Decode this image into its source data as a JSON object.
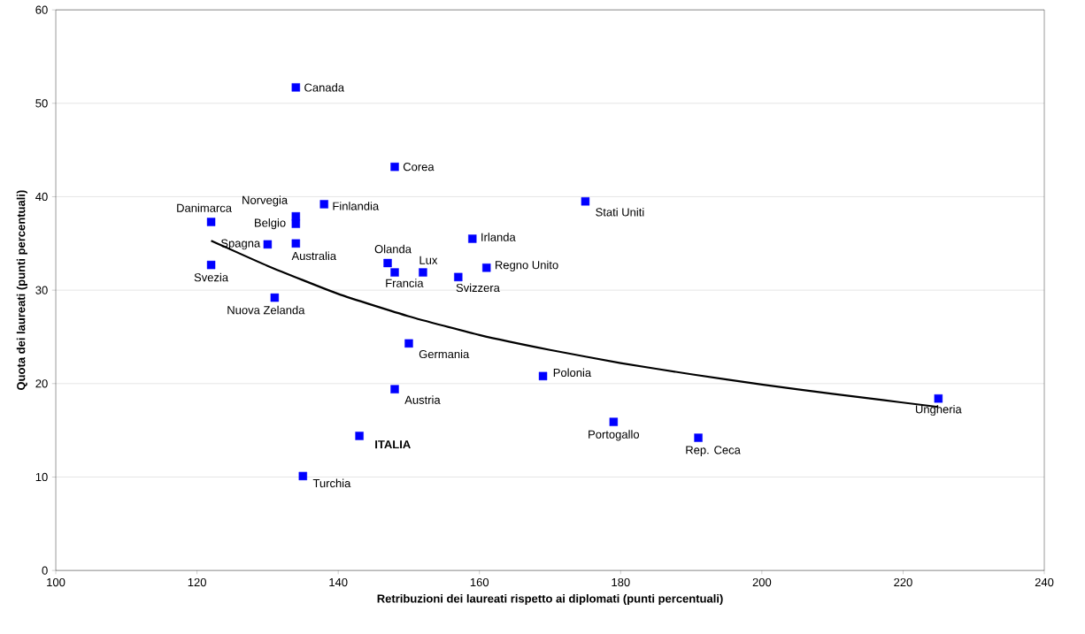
{
  "chart_data": {
    "type": "scatter",
    "xlabel": "Retribuzioni  dei laureati rispetto ai diplomati (punti percentuali)",
    "ylabel": "Quota dei laureati (punti percentuali)",
    "xlim": [
      100,
      240
    ],
    "xticks": [
      100,
      120,
      140,
      160,
      180,
      200,
      220,
      240
    ],
    "ylim": [
      0,
      60
    ],
    "yticks": [
      0,
      10,
      20,
      30,
      40,
      50,
      60
    ],
    "grid": "y",
    "marker": "square",
    "series": [
      {
        "color": "#0000ff",
        "x": [
          134,
          148,
          134,
          134,
          138,
          122,
          130,
          122,
          134,
          131,
          147,
          148,
          152,
          157,
          161,
          159,
          175,
          150,
          148,
          169,
          179,
          191,
          225,
          143,
          135
        ],
        "values": [
          51.7,
          43.2,
          37.9,
          37.1,
          39.2,
          37.3,
          34.9,
          32.7,
          35.0,
          29.2,
          32.9,
          31.9,
          31.9,
          31.4,
          32.4,
          35.5,
          39.5,
          24.3,
          19.4,
          20.8,
          15.9,
          14.2,
          18.4,
          14.4,
          10.1
        ]
      },
      {
        "type": "line",
        "color": "#000000",
        "marker": "none",
        "x": [
          122,
          130,
          140,
          150,
          160,
          170,
          180,
          190,
          200,
          210,
          225
        ],
        "values": [
          35.3,
          32.6,
          29.6,
          27.2,
          25.2,
          23.6,
          22.2,
          21.0,
          19.9,
          18.9,
          17.5
        ]
      }
    ],
    "annotations": [
      {
        "text": "Canada",
        "x": 134,
        "y": 51.7
      },
      {
        "text": "Corea",
        "x": 148,
        "y": 43.2
      },
      {
        "text": "Norvegia",
        "x": 134,
        "y": 37.9
      },
      {
        "text": "Belgio",
        "x": 134,
        "y": 37.1
      },
      {
        "text": "Finlandia",
        "x": 138,
        "y": 39.2
      },
      {
        "text": "Danimarca",
        "x": 122,
        "y": 37.3
      },
      {
        "text": "Spagna",
        "x": 130,
        "y": 34.9
      },
      {
        "text": "Svezia",
        "x": 122,
        "y": 32.7
      },
      {
        "text": "Australia",
        "x": 134,
        "y": 35.0
      },
      {
        "text": "Nuova Zelanda",
        "x": 131,
        "y": 29.2
      },
      {
        "text": "Olanda",
        "x": 147,
        "y": 32.9
      },
      {
        "text": "Francia",
        "x": 148,
        "y": 31.9
      },
      {
        "text": "Lux",
        "x": 152,
        "y": 31.9
      },
      {
        "text": "Svizzera",
        "x": 157,
        "y": 31.4
      },
      {
        "text": "Regno Unito",
        "x": 161,
        "y": 32.4
      },
      {
        "text": "Irlanda",
        "x": 159,
        "y": 35.5
      },
      {
        "text": "Stati Uniti",
        "x": 175,
        "y": 39.5
      },
      {
        "text": "Germania",
        "x": 150,
        "y": 24.3
      },
      {
        "text": "Austria",
        "x": 148,
        "y": 19.4
      },
      {
        "text": "Polonia",
        "x": 169,
        "y": 20.8
      },
      {
        "text": "Portogallo",
        "x": 179,
        "y": 15.9
      },
      {
        "text": "Rep. Ceca",
        "x": 191,
        "y": 14.2
      },
      {
        "text": "Ungheria",
        "x": 225,
        "y": 18.4
      },
      {
        "text": "**ITALIA**",
        "x": 143,
        "y": 14.4
      },
      {
        "text": "Turchia",
        "x": 135,
        "y": 10.1
      }
    ]
  }
}
